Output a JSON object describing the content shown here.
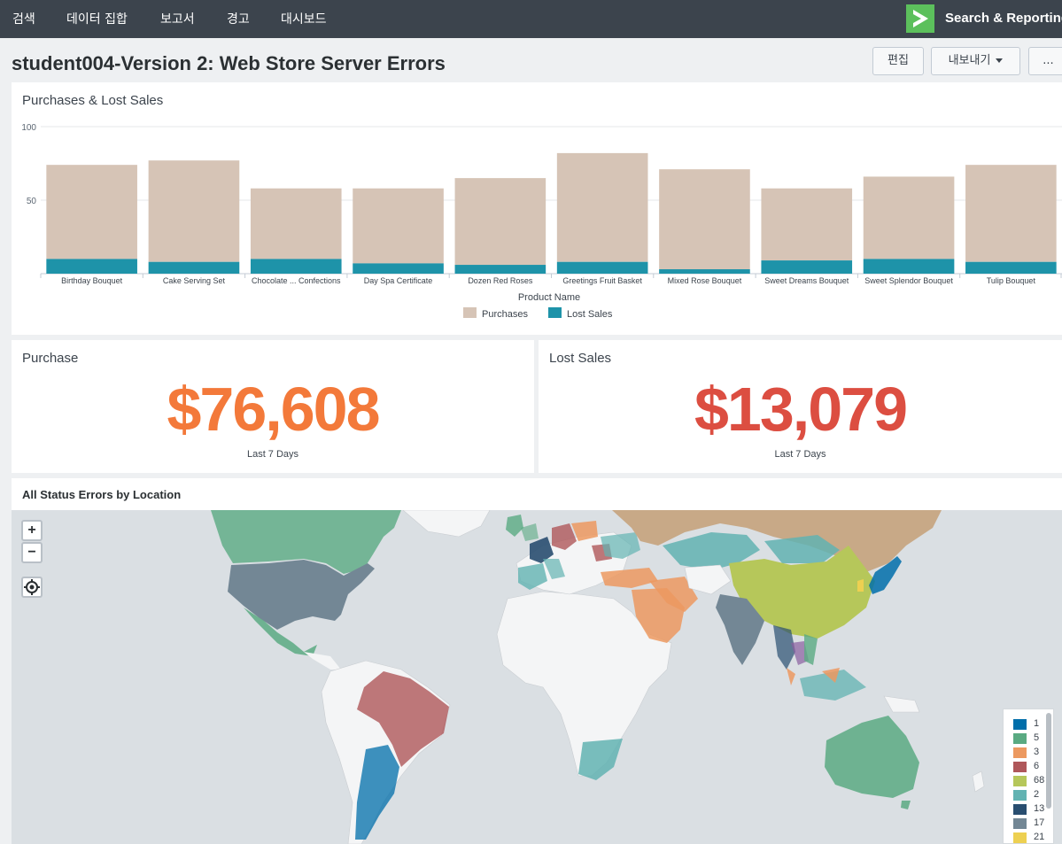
{
  "nav": {
    "items": [
      "검색",
      "데이터 집합",
      "보고서",
      "경고",
      "대시보드"
    ],
    "app_name": "Search & Reporting"
  },
  "dashboard": {
    "title": "student004-Version 2: Web Store Server Errors",
    "buttons": {
      "edit": "편집",
      "export": "내보내기",
      "more": "..."
    }
  },
  "chart_panel": {
    "title": "Purchases & Lost Sales"
  },
  "chart_data": {
    "type": "bar",
    "stacked": true,
    "xlabel": "Product Name",
    "ylim": [
      0,
      100
    ],
    "yticks": [
      "100",
      "50"
    ],
    "categories": [
      "Birthday Bouquet",
      "Cake Serving Set",
      "Chocolate ... Confections",
      "Day Spa Certificate",
      "Dozen Red Roses",
      "Greetings Fruit Basket",
      "Mixed Rose Bouquet",
      "Sweet Dreams Bouquet",
      "Sweet Splendor Bouquet",
      "Tulip Bouquet"
    ],
    "series": [
      {
        "name": "Lost Sales",
        "color": "#1e93a9",
        "values": [
          10,
          8,
          10,
          7,
          6,
          8,
          3,
          9,
          10,
          8
        ]
      },
      {
        "name": "Purchases",
        "color": "#d6c4b6",
        "values": [
          64,
          69,
          48,
          51,
          59,
          74,
          68,
          49,
          56,
          66
        ]
      }
    ],
    "legend": "bottom"
  },
  "single_values": {
    "purchase": {
      "title": "Purchase",
      "value": "$76,608",
      "under": "Last 7 Days",
      "color": "#f3793a"
    },
    "lost_sales": {
      "title": "Lost Sales",
      "value": "$13,079",
      "under": "Last 7 Days",
      "color": "#dc4e41"
    }
  },
  "map_panel": {
    "title": "All Status Errors by Location",
    "zoom_in": "+",
    "zoom_out": "−",
    "legend": [
      {
        "label": "1",
        "color": "#006eaa"
      },
      {
        "label": "5",
        "color": "#5aaa82"
      },
      {
        "label": "3",
        "color": "#ec9960"
      },
      {
        "label": "6",
        "color": "#af575a"
      },
      {
        "label": "68",
        "color": "#b6c75a"
      },
      {
        "label": "2",
        "color": "#62b3b2"
      },
      {
        "label": "13",
        "color": "#294e70"
      },
      {
        "label": "17",
        "color": "#738795"
      },
      {
        "label": "21",
        "color": "#edd051"
      }
    ]
  }
}
